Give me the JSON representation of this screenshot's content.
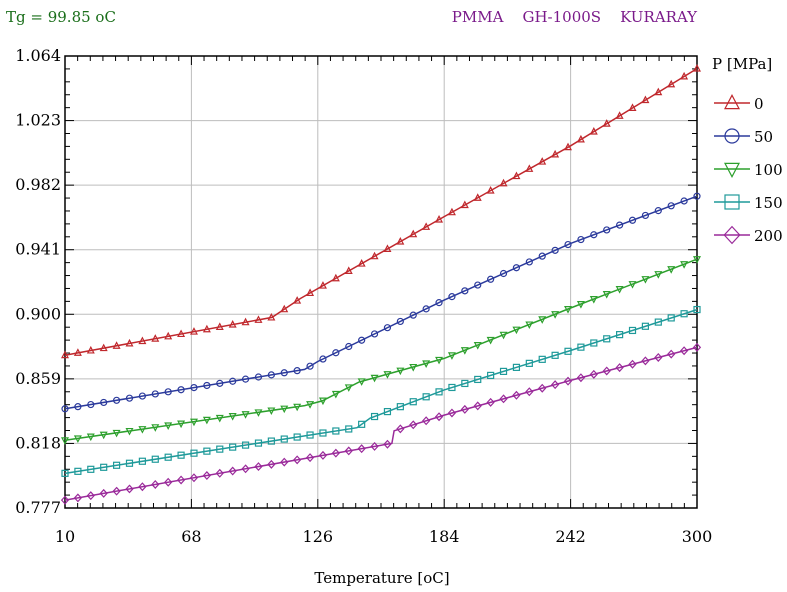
{
  "header": {
    "left": "Tg = 99.85 oC",
    "right": "PMMA    GH-1000S    KURARAY",
    "left_color": "#1a6e1a",
    "right_color": "#7a1a8a"
  },
  "chart_data": {
    "type": "line",
    "title": "",
    "xlabel": "Temperature [oC]",
    "ylabel": "",
    "xlim": [
      10,
      300
    ],
    "ylim": [
      0.777,
      1.064
    ],
    "x_ticks": [
      "10",
      "68",
      "126",
      "184",
      "242",
      "300"
    ],
    "y_ticks": [
      "0.777",
      "0.818",
      "0.859",
      "0.900",
      "0.941",
      "0.982",
      "1.023",
      "1.064"
    ],
    "grid": true,
    "legend": {
      "title": "P [MPa]",
      "placement": "right"
    },
    "series": [
      {
        "name": "0",
        "color": "#c0282d",
        "marker": "triangle-up",
        "points": [
          [
            10,
            0.874
          ],
          [
            105,
            0.898
          ],
          [
            118,
            0.91
          ],
          [
            184,
            0.962
          ],
          [
            242,
            1.007
          ],
          [
            300,
            1.056
          ]
        ]
      },
      {
        "name": "50",
        "color": "#2b3a9c",
        "marker": "circle",
        "points": [
          [
            10,
            0.84
          ],
          [
            120,
            0.865
          ],
          [
            126,
            0.87
          ],
          [
            184,
            0.909
          ],
          [
            242,
            0.945
          ],
          [
            300,
            0.975
          ]
        ]
      },
      {
        "name": "100",
        "color": "#2da02d",
        "marker": "triangle-down",
        "points": [
          [
            10,
            0.82
          ],
          [
            120,
            0.842
          ],
          [
            128,
            0.845
          ],
          [
            145,
            0.857
          ],
          [
            184,
            0.872
          ],
          [
            242,
            0.904
          ],
          [
            300,
            0.935
          ]
        ]
      },
      {
        "name": "150",
        "color": "#1f9a9a",
        "marker": "square",
        "points": [
          [
            10,
            0.799
          ],
          [
            144,
            0.828
          ],
          [
            150,
            0.834
          ],
          [
            184,
            0.852
          ],
          [
            242,
            0.877
          ],
          [
            300,
            0.903
          ]
        ]
      },
      {
        "name": "200",
        "color": "#9a2a9a",
        "marker": "diamond",
        "points": [
          [
            10,
            0.782
          ],
          [
            160,
            0.818
          ],
          [
            161,
            0.826
          ],
          [
            184,
            0.836
          ],
          [
            242,
            0.858
          ],
          [
            300,
            0.879
          ]
        ]
      }
    ]
  }
}
